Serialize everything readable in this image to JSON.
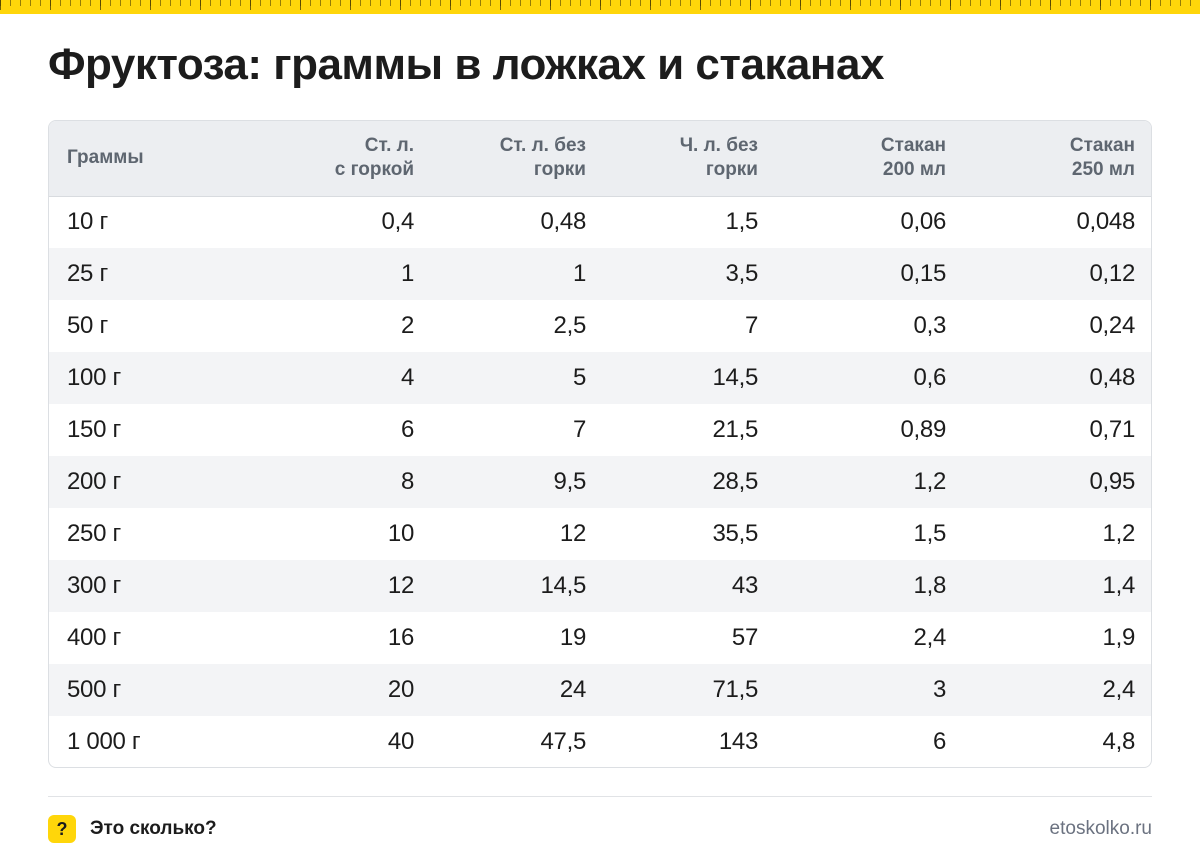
{
  "title": "Фруктоза: граммы в ложках и стаканах",
  "table": {
    "headers": [
      [
        "Граммы",
        ""
      ],
      [
        "Ст. л.",
        "с горкой"
      ],
      [
        "Ст. л. без",
        "горки"
      ],
      [
        "Ч. л. без",
        "горки"
      ],
      [
        "Стакан",
        "200 мл"
      ],
      [
        "Стакан",
        "250 мл"
      ]
    ],
    "rows": [
      [
        "10 г",
        "0,4",
        "0,48",
        "1,5",
        "0,06",
        "0,048"
      ],
      [
        "25 г",
        "1",
        "1",
        "3,5",
        "0,15",
        "0,12"
      ],
      [
        "50 г",
        "2",
        "2,5",
        "7",
        "0,3",
        "0,24"
      ],
      [
        "100 г",
        "4",
        "5",
        "14,5",
        "0,6",
        "0,48"
      ],
      [
        "150 г",
        "6",
        "7",
        "21,5",
        "0,89",
        "0,71"
      ],
      [
        "200 г",
        "8",
        "9,5",
        "28,5",
        "1,2",
        "0,95"
      ],
      [
        "250 г",
        "10",
        "12",
        "35,5",
        "1,5",
        "1,2"
      ],
      [
        "300 г",
        "12",
        "14,5",
        "43",
        "1,8",
        "1,4"
      ],
      [
        "400 г",
        "16",
        "19",
        "57",
        "2,4",
        "1,9"
      ],
      [
        "500 г",
        "20",
        "24",
        "71,5",
        "3",
        "2,4"
      ],
      [
        "1 000 г",
        "40",
        "47,5",
        "143",
        "6",
        "4,8"
      ]
    ]
  },
  "footer": {
    "badge": "?",
    "brand": "Это сколько?",
    "site": "etoskolko.ru"
  },
  "colors": {
    "accent": "#ffd60a",
    "header_bg": "#eceef1",
    "stripe_bg": "#f3f4f6",
    "header_text": "#5e6670"
  }
}
